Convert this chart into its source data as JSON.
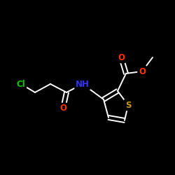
{
  "background_color": "#000000",
  "bond_color": "#ffffff",
  "atom_colors": {
    "Cl": "#00cc00",
    "O": "#ff3300",
    "N": "#3333ff",
    "S": "#cc9900",
    "C": "#ffffff",
    "H": "#ffffff"
  },
  "figsize": [
    2.5,
    2.5
  ],
  "dpi": 100
}
